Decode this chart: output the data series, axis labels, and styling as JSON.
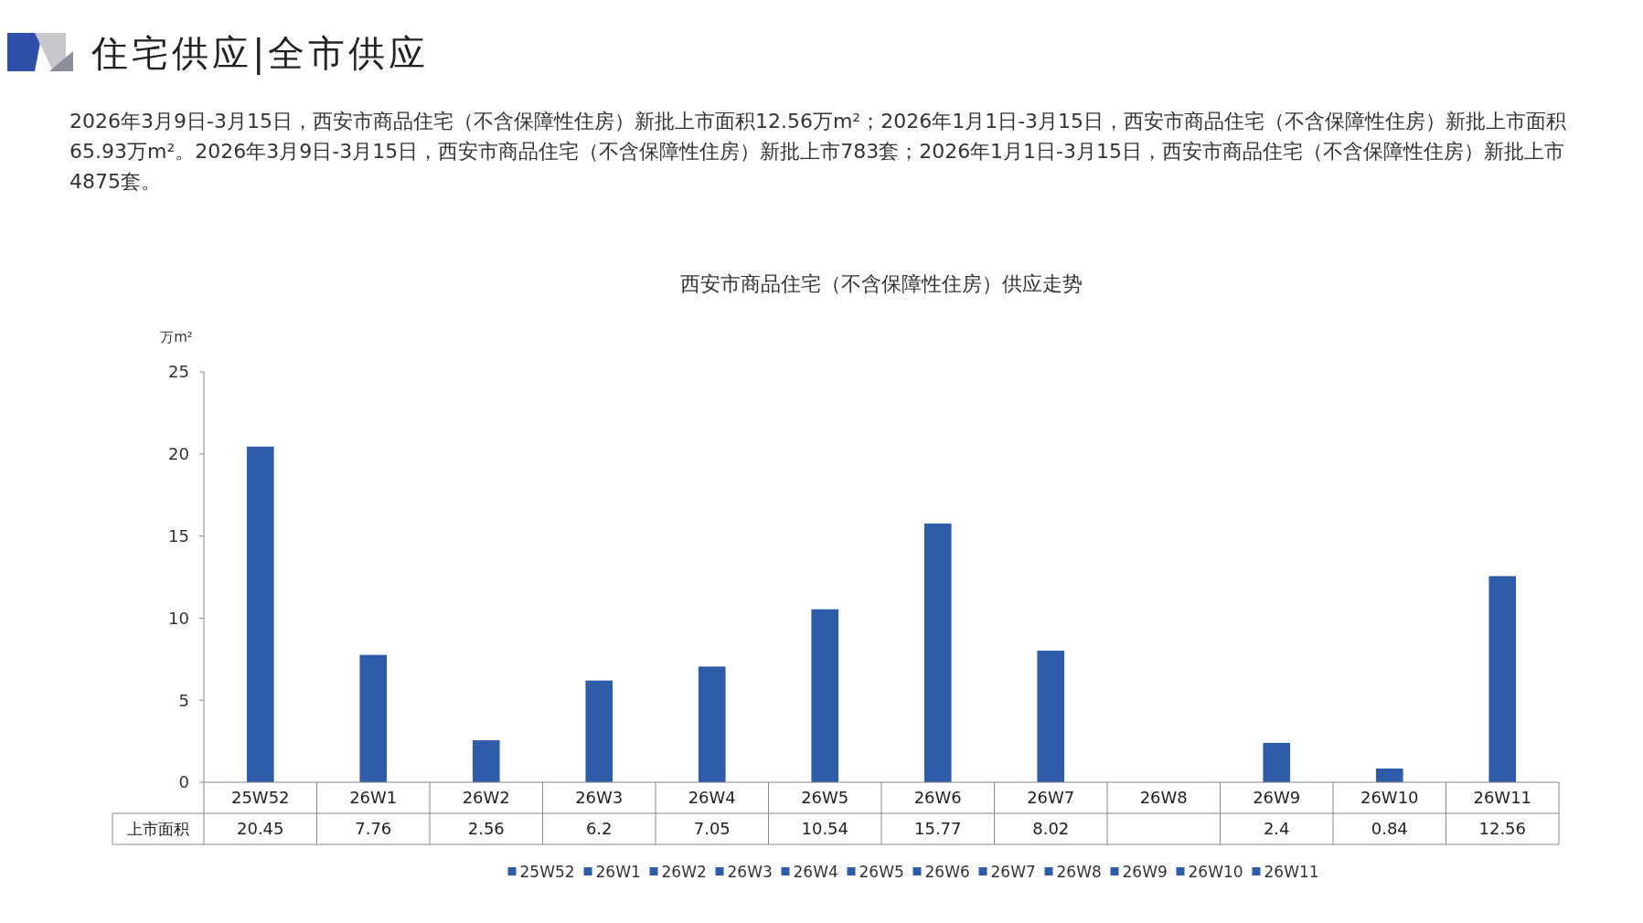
{
  "chart_data": {
    "type": "bar",
    "title": "住宅供应|全市供应",
    "subtitle": "西安市商品住宅（不含保障性住房）供应走势",
    "annotations": [
      "2026年3月9日-3月15日，西安市商品住宅（不含保障性住房）新批上市面积12.56万m²；2026年1月1日-3月15日，西安市商品住宅（不含保障性住房）新批上市面积65.93万m²。2026年3月9日-3月15日，西安市商品住宅（不含保障性住房）新批上市783套；2026年1月1日-3月15日，西安市商品住宅（不含保障性住房）新批上市4875套。"
    ],
    "ylabel": "万m²",
    "categories": [
      "25W52",
      "26W1",
      "26W2",
      "26W3",
      "26W4",
      "26W5",
      "26W6",
      "26W7",
      "26W8",
      "26W9",
      "26W10",
      "26W11"
    ],
    "series": [
      {
        "name": "上市面积",
        "colors": [
          "#2f5ca8",
          "#2f5ca8",
          "#2f5ca8",
          "#2f5ca8",
          "#2f5ca8",
          "#2f5ca8",
          "#2f5ca8",
          "#2f5ca8",
          "#2f5ca8",
          "#2f5ca8",
          "#2f5ca8",
          "#2f5ca8"
        ],
        "values": [
          20.45,
          7.76,
          2.56,
          6.2,
          7.05,
          10.54,
          15.77,
          8.02,
          null,
          2.4,
          0.84,
          12.56
        ]
      }
    ],
    "ylim": [
      0,
      25
    ],
    "yticks": [
      0,
      5,
      10,
      15,
      20,
      25
    ],
    "grid": false,
    "legend": "bottom",
    "data_labels": true
  }
}
